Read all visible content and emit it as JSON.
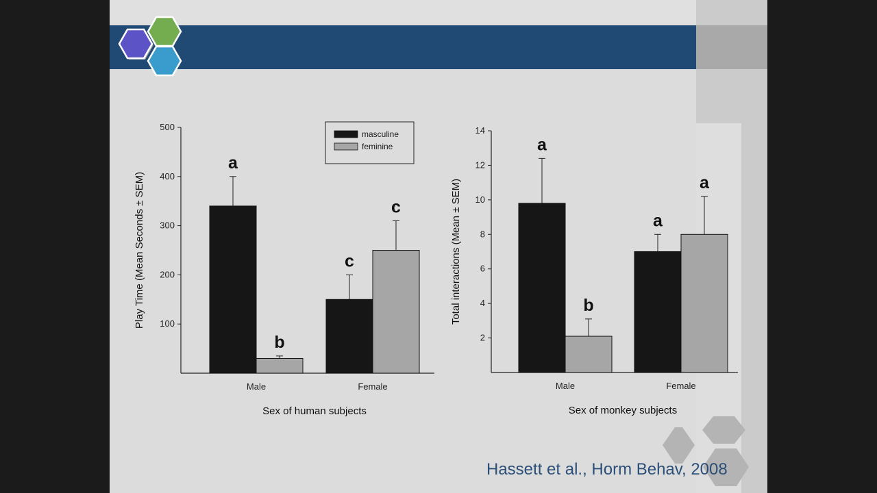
{
  "citation": "Hassett et al., Horm Behav, 2008",
  "colors": {
    "masculine": "#161616",
    "feminine": "#a6a6a6",
    "header": "#204a73",
    "hex_purple": "#5c53c6",
    "hex_green": "#74ad50",
    "hex_teal": "#3a9ccd"
  },
  "chart_data": [
    {
      "type": "bar",
      "categories": [
        "Male",
        "Female"
      ],
      "series": [
        {
          "name": "masculine",
          "values": [
            340,
            150
          ],
          "errors": [
            60,
            50
          ],
          "letters": [
            "a",
            "c"
          ]
        },
        {
          "name": "feminine",
          "values": [
            30,
            250
          ],
          "errors": [
            5,
            60
          ],
          "letters": [
            "b",
            "c"
          ]
        }
      ],
      "xlabel": "Sex of human subjects",
      "ylabel": "Play Time (Mean Seconds ± SEM)",
      "yticks": [
        "100",
        "200",
        "300",
        "400",
        "500"
      ],
      "ylim": [
        0,
        500
      ],
      "legend": {
        "placement": "top-right",
        "entries": [
          "masculine",
          "feminine"
        ]
      }
    },
    {
      "type": "bar",
      "categories": [
        "Male",
        "Female"
      ],
      "series": [
        {
          "name": "masculine",
          "values": [
            9.8,
            7.0
          ],
          "errors": [
            2.6,
            1.0
          ],
          "letters": [
            "a",
            "a"
          ]
        },
        {
          "name": "feminine",
          "values": [
            2.1,
            8.0
          ],
          "errors": [
            1.0,
            2.2
          ],
          "letters": [
            "b",
            "a"
          ]
        }
      ],
      "xlabel": "Sex of monkey subjects",
      "ylabel": "Total interactions (Mean ± SEM)",
      "yticks": [
        "2",
        "4",
        "6",
        "8",
        "10",
        "12",
        "14"
      ],
      "ylim": [
        0,
        14
      ]
    }
  ]
}
